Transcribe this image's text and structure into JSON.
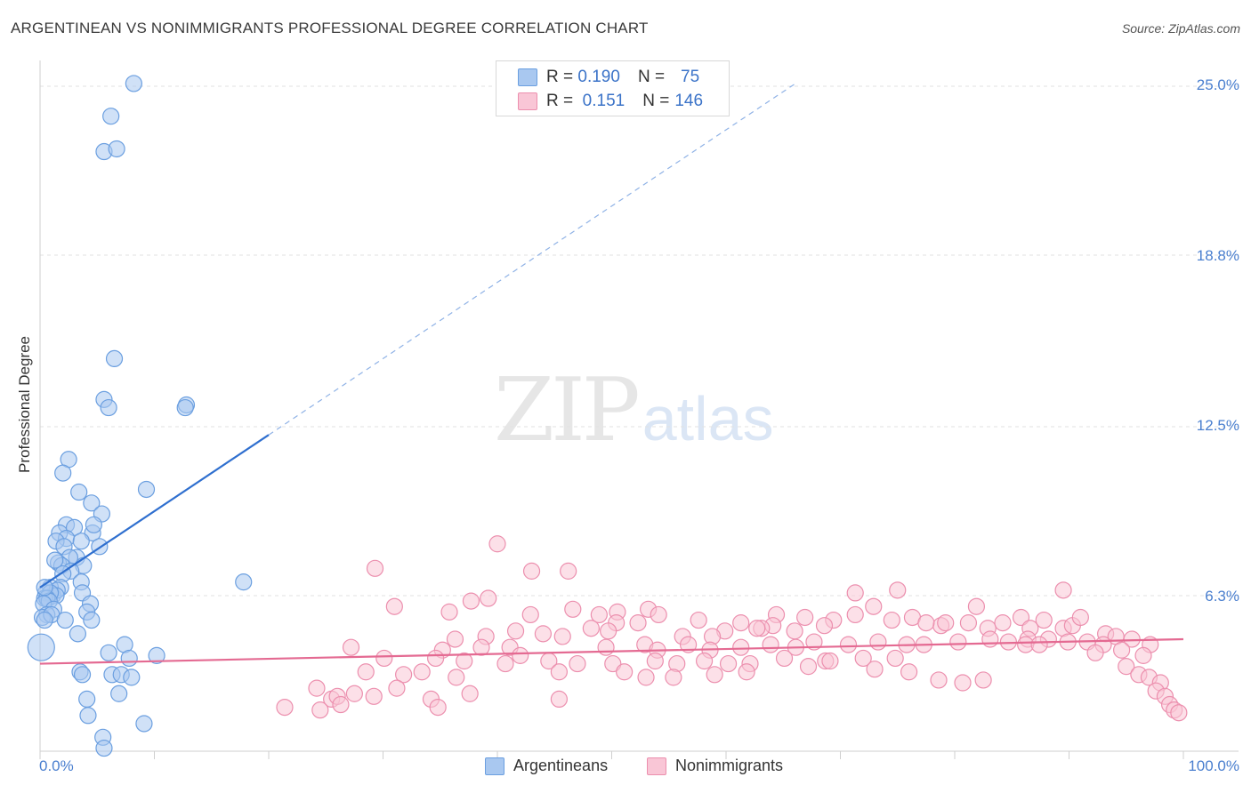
{
  "header": {
    "title": "ARGENTINEAN VS NONIMMIGRANTS PROFESSIONAL DEGREE CORRELATION CHART",
    "source": "Source: ZipAtlas.com"
  },
  "watermark": {
    "zip": "ZIP",
    "atlas": "atlas"
  },
  "legend": {
    "rows": [
      {
        "r_label": "R =",
        "r_value": "0.190",
        "n_label": "N =",
        "n_value": "75",
        "color": "#a9c8f0",
        "border": "#6b9fe0"
      },
      {
        "r_label": "R =",
        "r_value": "0.151",
        "n_label": "N =",
        "n_value": "146",
        "color": "#f9c6d6",
        "border": "#ec8fae"
      }
    ]
  },
  "bottom_legend": [
    {
      "label": "Argentineans",
      "color": "#a9c8f0",
      "border": "#6b9fe0"
    },
    {
      "label": "Nonimmigrants",
      "color": "#f9c6d6",
      "border": "#ec8fae"
    }
  ],
  "chart_data": {
    "type": "scatter",
    "title": "ARGENTINEAN VS NONIMMIGRANTS PROFESSIONAL DEGREE CORRELATION CHART",
    "xlabel": "",
    "ylabel": "Professional Degree",
    "x_tick_labels": [
      "0.0%",
      "100.0%"
    ],
    "y_tick_labels": [
      "25.0%",
      "18.8%",
      "12.5%",
      "6.3%"
    ],
    "y_ticks": [
      25.0,
      18.8,
      12.5,
      6.3
    ],
    "xlim": [
      0,
      100
    ],
    "ylim": [
      0,
      25.0
    ],
    "grid": true,
    "legend_position": "top-center",
    "series": [
      {
        "name": "Argentineans",
        "color": "#6b9fe0",
        "fill": "#a9c8f0",
        "trend": {
          "x0": 0.0,
          "y0": 6.6,
          "x1": 20.0,
          "y1": 12.2,
          "dashed_to_x": 66.0,
          "line_color": "#2f6fcf"
        },
        "points": [
          [
            8.2,
            25.1
          ],
          [
            6.2,
            23.9
          ],
          [
            5.6,
            22.6
          ],
          [
            6.7,
            22.7
          ],
          [
            6.5,
            15.0
          ],
          [
            5.6,
            13.5
          ],
          [
            6.0,
            13.2
          ],
          [
            12.8,
            13.3
          ],
          [
            12.7,
            13.2
          ],
          [
            2.5,
            11.3
          ],
          [
            2.0,
            10.8
          ],
          [
            9.3,
            10.2
          ],
          [
            3.4,
            10.1
          ],
          [
            4.5,
            9.7
          ],
          [
            5.4,
            9.3
          ],
          [
            2.3,
            8.9
          ],
          [
            4.6,
            8.6
          ],
          [
            4.7,
            8.9
          ],
          [
            1.7,
            8.6
          ],
          [
            3.0,
            8.8
          ],
          [
            2.3,
            8.4
          ],
          [
            3.6,
            8.3
          ],
          [
            1.4,
            8.3
          ],
          [
            2.1,
            8.1
          ],
          [
            5.2,
            8.1
          ],
          [
            3.2,
            7.7
          ],
          [
            2.6,
            7.7
          ],
          [
            3.8,
            7.4
          ],
          [
            1.6,
            7.5
          ],
          [
            1.9,
            7.4
          ],
          [
            2.7,
            7.2
          ],
          [
            2.0,
            7.1
          ],
          [
            3.6,
            6.8
          ],
          [
            1.8,
            6.6
          ],
          [
            0.9,
            6.6
          ],
          [
            1.1,
            6.3
          ],
          [
            0.7,
            6.2
          ],
          [
            0.5,
            6.4
          ],
          [
            1.5,
            6.5
          ],
          [
            1.4,
            6.3
          ],
          [
            0.9,
            6.4
          ],
          [
            3.7,
            6.4
          ],
          [
            0.4,
            6.2
          ],
          [
            0.6,
            6.2
          ],
          [
            0.8,
            6.1
          ],
          [
            0.3,
            6.0
          ],
          [
            1.2,
            5.8
          ],
          [
            4.4,
            6.0
          ],
          [
            4.1,
            5.7
          ],
          [
            17.8,
            6.8
          ],
          [
            0.6,
            5.6
          ],
          [
            0.2,
            5.5
          ],
          [
            1.0,
            5.6
          ],
          [
            0.4,
            5.4
          ],
          [
            2.2,
            5.4
          ],
          [
            4.5,
            5.4
          ],
          [
            3.3,
            4.9
          ],
          [
            0.1,
            4.4
          ],
          [
            7.4,
            4.5
          ],
          [
            6.0,
            4.2
          ],
          [
            10.2,
            4.1
          ],
          [
            7.8,
            4.0
          ],
          [
            3.5,
            3.5
          ],
          [
            3.7,
            3.4
          ],
          [
            6.3,
            3.4
          ],
          [
            7.1,
            3.4
          ],
          [
            8.0,
            3.3
          ],
          [
            6.9,
            2.7
          ],
          [
            4.1,
            2.5
          ],
          [
            4.2,
            1.9
          ],
          [
            9.1,
            1.6
          ],
          [
            5.5,
            1.1
          ],
          [
            5.6,
            0.7
          ],
          [
            0.4,
            6.6
          ],
          [
            1.3,
            7.6
          ]
        ]
      },
      {
        "name": "Nonimmigrants",
        "color": "#ec8fae",
        "fill": "#f9c6d6",
        "trend": {
          "x0": 0.0,
          "y0": 3.8,
          "x1": 100.0,
          "y1": 4.7,
          "line_color": "#e46a92"
        },
        "points": [
          [
            40.0,
            8.2
          ],
          [
            29.3,
            7.3
          ],
          [
            43.0,
            7.2
          ],
          [
            46.2,
            7.2
          ],
          [
            31.0,
            5.9
          ],
          [
            37.7,
            6.1
          ],
          [
            39.2,
            6.2
          ],
          [
            35.8,
            5.7
          ],
          [
            42.9,
            5.6
          ],
          [
            46.6,
            5.8
          ],
          [
            53.2,
            5.8
          ],
          [
            48.9,
            5.6
          ],
          [
            50.5,
            5.7
          ],
          [
            54.1,
            5.6
          ],
          [
            57.6,
            5.4
          ],
          [
            61.3,
            5.3
          ],
          [
            64.4,
            5.6
          ],
          [
            66.9,
            5.5
          ],
          [
            69.4,
            5.4
          ],
          [
            71.3,
            5.6
          ],
          [
            72.9,
            5.9
          ],
          [
            74.5,
            5.4
          ],
          [
            76.3,
            5.5
          ],
          [
            78.8,
            5.2
          ],
          [
            81.2,
            5.3
          ],
          [
            82.9,
            5.1
          ],
          [
            84.2,
            5.3
          ],
          [
            85.8,
            5.5
          ],
          [
            86.6,
            5.1
          ],
          [
            87.8,
            5.4
          ],
          [
            89.5,
            5.1
          ],
          [
            90.3,
            5.2
          ],
          [
            93.2,
            4.9
          ],
          [
            94.1,
            4.8
          ],
          [
            95.5,
            4.7
          ],
          [
            97.1,
            4.5
          ],
          [
            91.0,
            5.5
          ],
          [
            89.5,
            6.5
          ],
          [
            71.3,
            6.4
          ],
          [
            75.0,
            6.5
          ],
          [
            77.5,
            5.3
          ],
          [
            81.9,
            5.9
          ],
          [
            79.2,
            5.3
          ],
          [
            68.6,
            5.2
          ],
          [
            66.0,
            5.0
          ],
          [
            64.1,
            5.2
          ],
          [
            63.1,
            5.1
          ],
          [
            62.7,
            5.1
          ],
          [
            59.9,
            5.0
          ],
          [
            58.8,
            4.8
          ],
          [
            56.2,
            4.8
          ],
          [
            52.3,
            5.3
          ],
          [
            50.4,
            5.3
          ],
          [
            49.7,
            5.0
          ],
          [
            48.2,
            5.1
          ],
          [
            45.7,
            4.8
          ],
          [
            44.0,
            4.9
          ],
          [
            41.6,
            5.0
          ],
          [
            39.0,
            4.8
          ],
          [
            36.3,
            4.7
          ],
          [
            35.2,
            4.3
          ],
          [
            38.6,
            4.4
          ],
          [
            41.1,
            4.4
          ],
          [
            42.0,
            4.1
          ],
          [
            49.5,
            4.4
          ],
          [
            52.9,
            4.5
          ],
          [
            54.0,
            4.3
          ],
          [
            56.7,
            4.5
          ],
          [
            58.6,
            4.3
          ],
          [
            61.3,
            4.4
          ],
          [
            63.9,
            4.5
          ],
          [
            66.1,
            4.4
          ],
          [
            67.7,
            4.6
          ],
          [
            70.7,
            4.5
          ],
          [
            73.3,
            4.6
          ],
          [
            75.8,
            4.5
          ],
          [
            77.3,
            4.5
          ],
          [
            80.3,
            4.6
          ],
          [
            83.1,
            4.7
          ],
          [
            84.7,
            4.6
          ],
          [
            86.4,
            4.7
          ],
          [
            88.2,
            4.7
          ],
          [
            89.9,
            4.6
          ],
          [
            91.6,
            4.6
          ],
          [
            93.0,
            4.5
          ],
          [
            94.6,
            4.3
          ],
          [
            27.2,
            4.4
          ],
          [
            30.1,
            4.0
          ],
          [
            34.6,
            4.0
          ],
          [
            37.1,
            3.9
          ],
          [
            40.7,
            3.8
          ],
          [
            44.5,
            3.9
          ],
          [
            47.0,
            3.8
          ],
          [
            50.1,
            3.8
          ],
          [
            53.8,
            3.9
          ],
          [
            55.7,
            3.8
          ],
          [
            58.1,
            3.9
          ],
          [
            60.2,
            3.8
          ],
          [
            62.1,
            3.8
          ],
          [
            65.1,
            4.0
          ],
          [
            68.7,
            3.9
          ],
          [
            69.1,
            3.9
          ],
          [
            72.0,
            4.0
          ],
          [
            74.8,
            4.0
          ],
          [
            86.2,
            4.5
          ],
          [
            87.4,
            4.5
          ],
          [
            96.5,
            4.1
          ],
          [
            92.3,
            4.2
          ],
          [
            95.0,
            3.7
          ],
          [
            96.1,
            3.4
          ],
          [
            97.0,
            3.3
          ],
          [
            98.0,
            3.1
          ],
          [
            97.6,
            2.8
          ],
          [
            98.4,
            2.6
          ],
          [
            98.8,
            2.3
          ],
          [
            99.2,
            2.1
          ],
          [
            99.6,
            2.0
          ],
          [
            28.5,
            3.5
          ],
          [
            31.8,
            3.4
          ],
          [
            33.4,
            3.5
          ],
          [
            36.4,
            3.3
          ],
          [
            45.4,
            3.5
          ],
          [
            51.1,
            3.5
          ],
          [
            53.0,
            3.3
          ],
          [
            55.4,
            3.3
          ],
          [
            59.0,
            3.4
          ],
          [
            61.8,
            3.5
          ],
          [
            67.2,
            3.7
          ],
          [
            73.0,
            3.6
          ],
          [
            76.0,
            3.5
          ],
          [
            78.6,
            3.2
          ],
          [
            80.7,
            3.1
          ],
          [
            82.5,
            3.2
          ],
          [
            31.2,
            2.9
          ],
          [
            24.2,
            2.9
          ],
          [
            27.5,
            2.7
          ],
          [
            25.5,
            2.5
          ],
          [
            26.0,
            2.6
          ],
          [
            34.2,
            2.5
          ],
          [
            37.6,
            2.7
          ],
          [
            21.4,
            2.2
          ],
          [
            24.5,
            2.1
          ],
          [
            26.3,
            2.3
          ],
          [
            29.2,
            2.6
          ],
          [
            34.8,
            2.2
          ],
          [
            45.4,
            2.5
          ]
        ]
      }
    ]
  },
  "y_axis_labels": [
    {
      "label": "25.0%",
      "value": 25.0
    },
    {
      "label": "18.8%",
      "value": 18.8
    },
    {
      "label": "12.5%",
      "value": 12.5
    },
    {
      "label": "6.3%",
      "value": 6.3
    }
  ]
}
